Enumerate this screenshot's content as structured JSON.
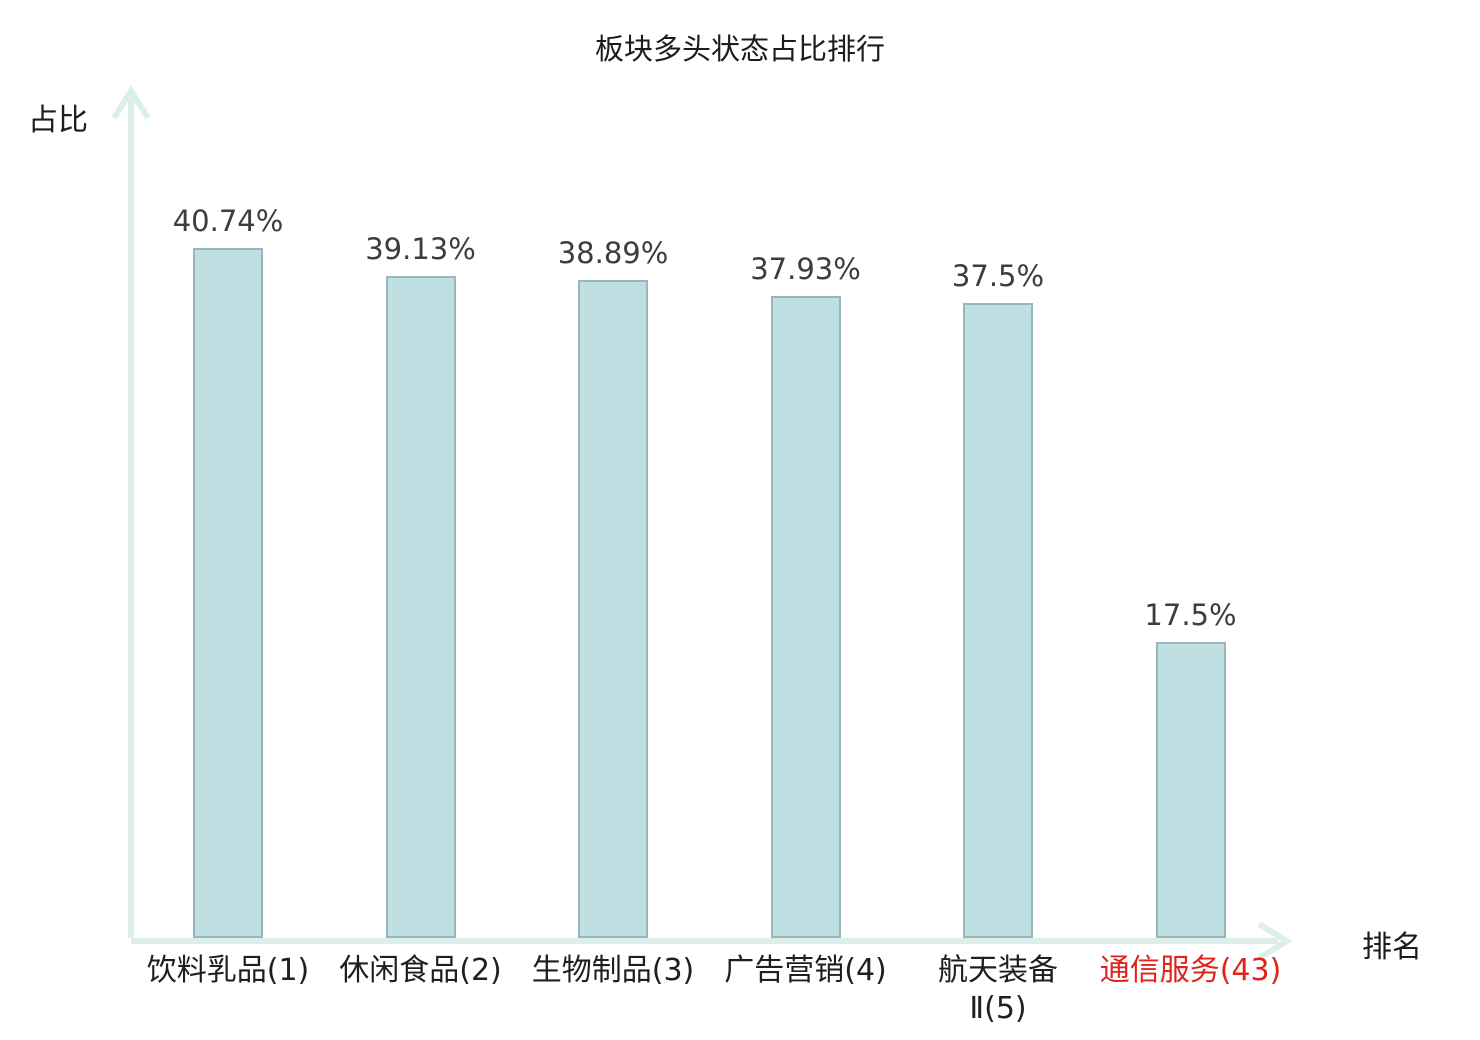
{
  "title": "板块多头状态占比排行",
  "colors": {
    "bar_fill": "#bee0e3",
    "bar_border": "#9bb5b9",
    "axis": "#ddefeb",
    "value_text": "#3d3d3d",
    "category_text": "#1f1f1f",
    "highlight": "#e0231c"
  },
  "chart_data": {
    "type": "bar",
    "title": "板块多头状态占比排行",
    "xlabel": "排名",
    "ylabel": "占比",
    "categories": [
      "饮料乳品(1)",
      "休闲食品(2)",
      "生物制品(3)",
      "广告营销(4)",
      "航天装备Ⅱ(5)",
      "通信服务(43)"
    ],
    "values": [
      40.74,
      39.13,
      38.89,
      37.93,
      37.5,
      17.5
    ],
    "value_labels": [
      "40.74%",
      "39.13%",
      "38.89%",
      "37.93%",
      "37.5%",
      "17.5%"
    ],
    "category_lines": [
      [
        "饮料乳品(1)"
      ],
      [
        "休闲食品(2)"
      ],
      [
        "生物制品(3)"
      ],
      [
        "广告营销(4)"
      ],
      [
        "航天装备",
        "Ⅱ(5)"
      ],
      [
        "通信服务(43)"
      ]
    ],
    "highlight_index": 5,
    "ylim": [
      0,
      49.5
    ],
    "grid": false,
    "legend": null
  }
}
